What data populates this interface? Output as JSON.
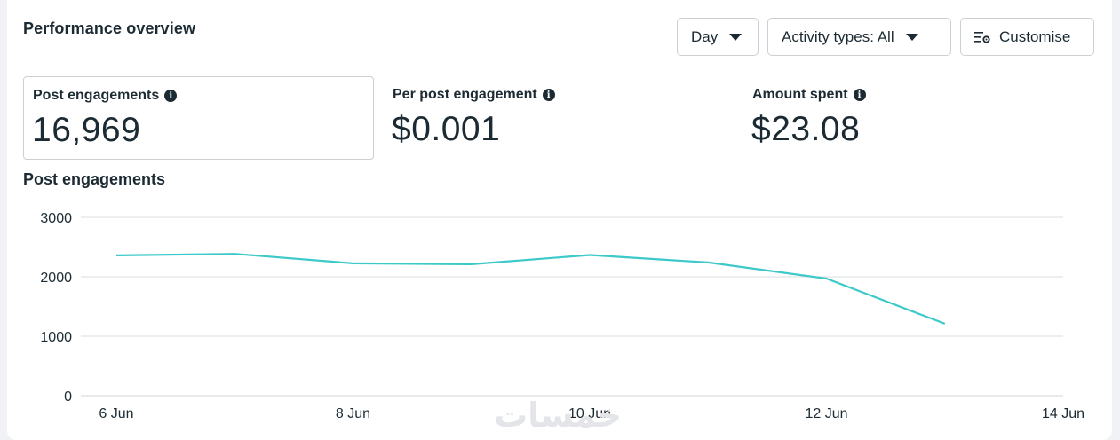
{
  "header": {
    "title": "Performance overview",
    "day_label": "Day",
    "activity_label": "Activity types: All",
    "customise_label": "Customise"
  },
  "metrics": [
    {
      "label": "Post engagements",
      "value": "16,969"
    },
    {
      "label": "Per post engagement",
      "value": "$0.001"
    },
    {
      "label": "Amount spent",
      "value": "$23.08"
    }
  ],
  "colors": {
    "line": "#3dc9c9",
    "grid": "#dadde1"
  },
  "watermark": "خمسات",
  "chart_data": {
    "type": "line",
    "title": "Post engagements",
    "xlabel": "",
    "ylabel": "",
    "x_ticks": [
      "6 Jun",
      "8 Jun",
      "10 Jun",
      "12 Jun",
      "14 Jun"
    ],
    "y_ticks": [
      "0",
      "1000",
      "2000",
      "3000"
    ],
    "ylim": [
      0,
      3000
    ],
    "grid": true,
    "series": [
      {
        "x": [
          "6 Jun",
          "7 Jun",
          "8 Jun",
          "9 Jun",
          "10 Jun",
          "11 Jun",
          "12 Jun",
          "13 Jun"
        ],
        "values": [
          2360,
          2385,
          2225,
          2210,
          2365,
          2240,
          1970,
          1210
        ]
      }
    ]
  }
}
